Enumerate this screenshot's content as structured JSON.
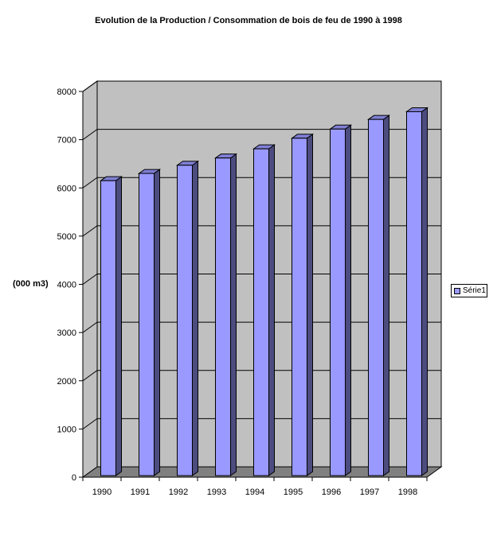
{
  "chart_data": {
    "type": "bar",
    "title": "Evolution de la Production / Consommation de bois de feu de 1990 à 1998",
    "ylabel": "(000 m3)",
    "xlabel": "",
    "categories": [
      "1990",
      "1991",
      "1992",
      "1993",
      "1994",
      "1995",
      "1996",
      "1997",
      "1998"
    ],
    "series": [
      {
        "name": "Série1",
        "values": [
          6150,
          6300,
          6470,
          6620,
          6810,
          7030,
          7220,
          7420,
          7580
        ],
        "color": "#9999ff"
      }
    ],
    "ylim": [
      0,
      8000
    ],
    "yticks": [
      "0",
      "1000",
      "2000",
      "3000",
      "4000",
      "5000",
      "6000",
      "7000",
      "8000"
    ],
    "grid": true,
    "three_d": true,
    "legend_position": "right",
    "colors": {
      "wall": "#c0c0c0",
      "floor": "#808080",
      "bar_front": "#9999ff",
      "bar_top": "#7f7fd4",
      "bar_side": "#4c4c7f"
    }
  }
}
